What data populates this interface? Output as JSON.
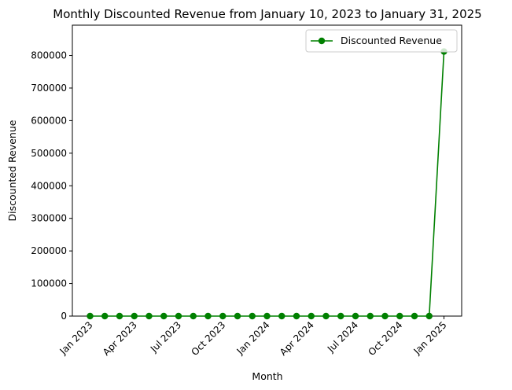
{
  "chart_data": {
    "type": "line",
    "title": "Monthly Discounted Revenue from January 10, 2023 to January 31, 2025",
    "xlabel": "Month",
    "ylabel": "Discounted Revenue",
    "x": [
      "2023-01",
      "2023-02",
      "2023-03",
      "2023-04",
      "2023-05",
      "2023-06",
      "2023-07",
      "2023-08",
      "2023-09",
      "2023-10",
      "2023-11",
      "2023-12",
      "2024-01",
      "2024-02",
      "2024-03",
      "2024-04",
      "2024-05",
      "2024-06",
      "2024-07",
      "2024-08",
      "2024-09",
      "2024-10",
      "2024-11",
      "2024-12",
      "2025-01"
    ],
    "xticks": [
      {
        "x": "2023-01",
        "label": "Jan 2023"
      },
      {
        "x": "2023-04",
        "label": "Apr 2023"
      },
      {
        "x": "2023-07",
        "label": "Jul 2023"
      },
      {
        "x": "2023-10",
        "label": "Oct 2023"
      },
      {
        "x": "2024-01",
        "label": "Jan 2024"
      },
      {
        "x": "2024-04",
        "label": "Apr 2024"
      },
      {
        "x": "2024-07",
        "label": "Jul 2024"
      },
      {
        "x": "2024-10",
        "label": "Oct 2024"
      },
      {
        "x": "2025-01",
        "label": "Jan 2025"
      }
    ],
    "series": [
      {
        "name": "Discounted Revenue",
        "color": "#008000",
        "marker": "circle",
        "values": [
          0,
          0,
          0,
          0,
          0,
          0,
          0,
          0,
          0,
          0,
          0,
          0,
          0,
          0,
          0,
          0,
          0,
          0,
          0,
          0,
          0,
          0,
          0,
          0,
          812000
        ]
      }
    ],
    "ylim": [
      0,
      893000
    ],
    "yticks": [
      0,
      100000,
      200000,
      300000,
      400000,
      500000,
      600000,
      700000,
      800000
    ],
    "grid": false,
    "legend_position": "top-right"
  }
}
